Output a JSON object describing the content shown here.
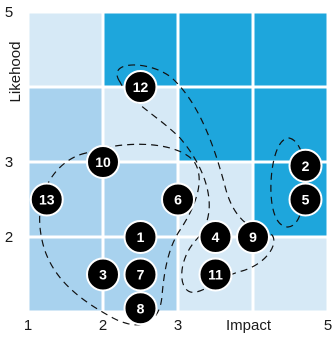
{
  "chart_data": {
    "type": "scatter",
    "title": "",
    "xlabel": "Impact",
    "ylabel": "Likehood",
    "xlim": [
      1,
      5
    ],
    "ylim": [
      1,
      5
    ],
    "x_ticks": [
      "1",
      "2",
      "3",
      "5"
    ],
    "y_ticks": [
      "2",
      "3",
      "5"
    ],
    "grid": "4x4 heat-map cells",
    "cell_colors": [
      [
        "#d6e9f6",
        "#1ea6dc",
        "#1ea6dc",
        "#1ea6dc"
      ],
      [
        "#a8d2ee",
        "#d6e9f6",
        "#1ea6dc",
        "#1ea6dc"
      ],
      [
        "#a8d2ee",
        "#a8d2ee",
        "#d6e9f6",
        "#1ea6dc"
      ],
      [
        "#a8d2ee",
        "#a8d2ee",
        "#d6e9f6",
        "#d6e9f6"
      ]
    ],
    "points": [
      {
        "id": "1",
        "x": 2.5,
        "y": 2.0
      },
      {
        "id": "2",
        "x": 4.7,
        "y": 2.95
      },
      {
        "id": "3",
        "x": 2.0,
        "y": 1.5
      },
      {
        "id": "4",
        "x": 3.5,
        "y": 2.0
      },
      {
        "id": "5",
        "x": 4.7,
        "y": 2.5
      },
      {
        "id": "6",
        "x": 3.0,
        "y": 2.5
      },
      {
        "id": "7",
        "x": 2.5,
        "y": 1.5
      },
      {
        "id": "8",
        "x": 2.5,
        "y": 1.05
      },
      {
        "id": "9",
        "x": 4.0,
        "y": 2.0
      },
      {
        "id": "10",
        "x": 2.0,
        "y": 3.0
      },
      {
        "id": "11",
        "x": 3.5,
        "y": 1.5
      },
      {
        "id": "12",
        "x": 2.5,
        "y": 4.0
      },
      {
        "id": "13",
        "x": 1.25,
        "y": 2.5
      }
    ],
    "marker_color": "#000000",
    "marker_text_color": "#ffffff"
  }
}
